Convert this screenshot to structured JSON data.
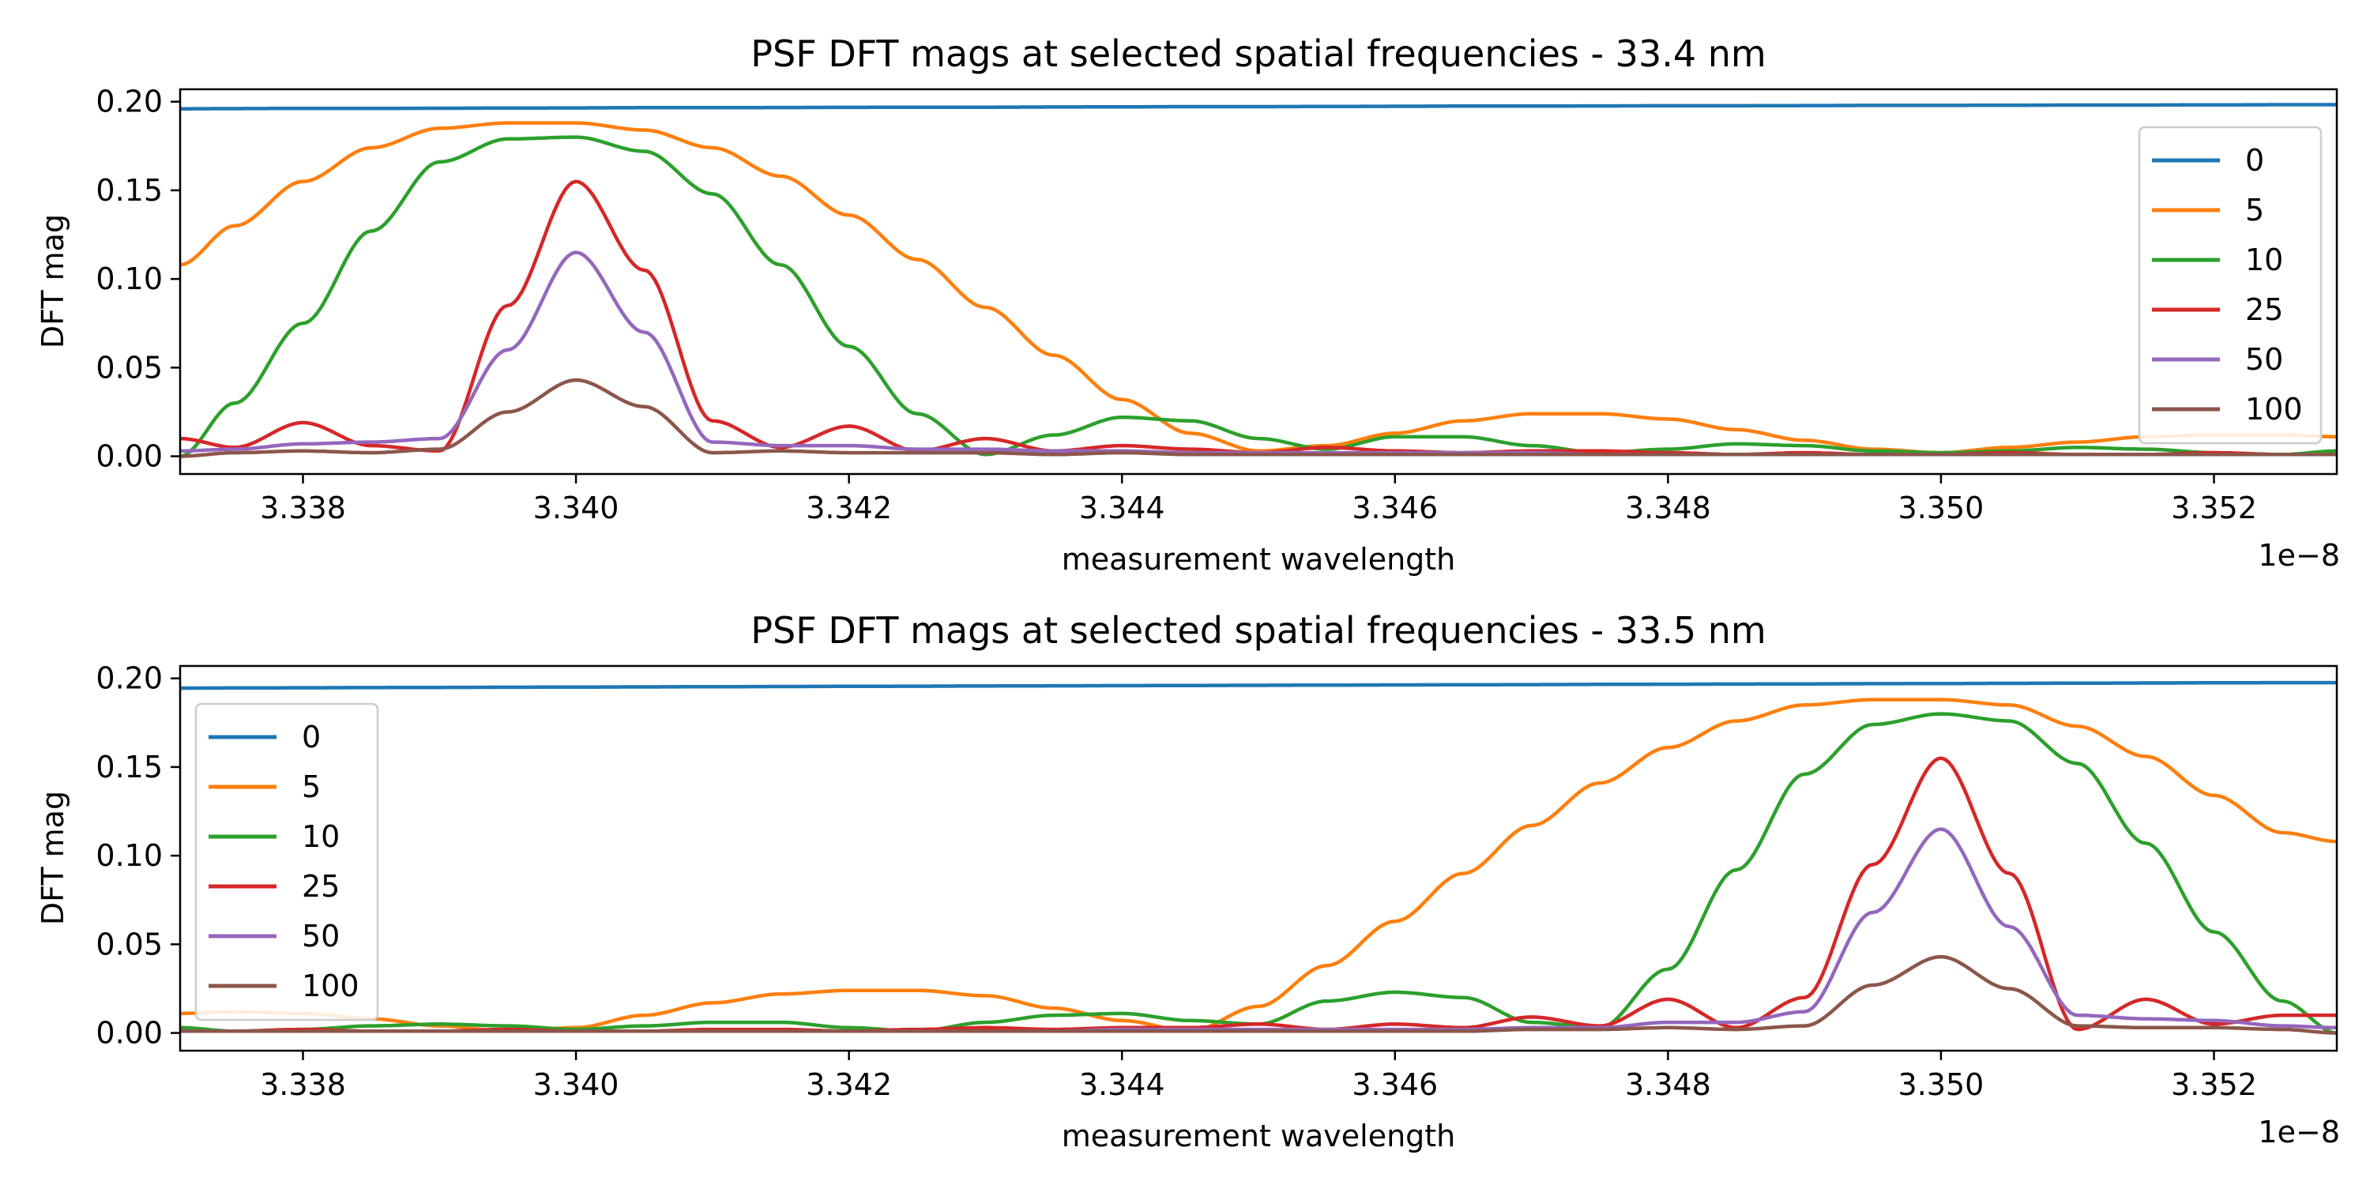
{
  "chart_data": [
    {
      "type": "line",
      "title": "PSF DFT mags at selected spatial frequencies - 33.4 nm",
      "xlabel": "measurement wavelength",
      "ylabel": "DFT mag",
      "x_offset_label": "1e−8",
      "xlim": [
        3.3371,
        3.3529
      ],
      "ylim": [
        -0.01,
        0.207
      ],
      "xticks": [
        "3.338",
        "3.340",
        "3.342",
        "3.344",
        "3.346",
        "3.348",
        "3.350",
        "3.352"
      ],
      "yticks": [
        "0.00",
        "0.05",
        "0.10",
        "0.15",
        "0.20"
      ],
      "legend_position": "upper right",
      "grid": false,
      "center": 3.34,
      "x": [
        3.3371,
        3.3375,
        3.338,
        3.3385,
        3.339,
        3.3395,
        3.34,
        3.3405,
        3.341,
        3.3415,
        3.342,
        3.3425,
        3.343,
        3.3435,
        3.344,
        3.3445,
        3.345,
        3.3455,
        3.346,
        3.3465,
        3.347,
        3.3475,
        3.348,
        3.3485,
        3.349,
        3.3495,
        3.35,
        3.3505,
        3.351,
        3.3515,
        3.352,
        3.3525,
        3.3529
      ],
      "series": [
        {
          "name": "0",
          "color": "#1f77b4",
          "values": [
            0.196,
            0.1961,
            0.1962,
            0.1962,
            0.1963,
            0.1964,
            0.1965,
            0.1966,
            0.1966,
            0.1967,
            0.1968,
            0.1969,
            0.1969,
            0.197,
            0.1971,
            0.1972,
            0.1972,
            0.1973,
            0.1974,
            0.1975,
            0.1975,
            0.1976,
            0.1977,
            0.1977,
            0.1978,
            0.1979,
            0.1979,
            0.198,
            0.1981,
            0.1981,
            0.1982,
            0.1983,
            0.1983
          ]
        },
        {
          "name": "5",
          "color": "#ff7f0e",
          "values": [
            0.108,
            0.13,
            0.155,
            0.174,
            0.185,
            0.188,
            0.188,
            0.184,
            0.174,
            0.158,
            0.136,
            0.111,
            0.084,
            0.057,
            0.032,
            0.013,
            0.003,
            0.006,
            0.013,
            0.02,
            0.024,
            0.024,
            0.021,
            0.015,
            0.009,
            0.004,
            0.002,
            0.005,
            0.008,
            0.011,
            0.012,
            0.012,
            0.011
          ]
        },
        {
          "name": "10",
          "color": "#2ca02c",
          "values": [
            0.0,
            0.03,
            0.075,
            0.127,
            0.166,
            0.179,
            0.18,
            0.172,
            0.148,
            0.108,
            0.062,
            0.024,
            0.001,
            0.012,
            0.022,
            0.02,
            0.01,
            0.004,
            0.011,
            0.011,
            0.006,
            0.002,
            0.004,
            0.007,
            0.006,
            0.003,
            0.002,
            0.003,
            0.005,
            0.004,
            0.002,
            0.001,
            0.003
          ]
        },
        {
          "name": "25",
          "color": "#d62728",
          "values": [
            0.01,
            0.005,
            0.019,
            0.006,
            0.003,
            0.085,
            0.155,
            0.105,
            0.02,
            0.005,
            0.017,
            0.003,
            0.01,
            0.003,
            0.006,
            0.004,
            0.002,
            0.005,
            0.003,
            0.002,
            0.003,
            0.003,
            0.002,
            0.001,
            0.002,
            0.001,
            0.001,
            0.002,
            0.001,
            0.001,
            0.002,
            0.001,
            0.001
          ]
        },
        {
          "name": "50",
          "color": "#9467bd",
          "values": [
            0.003,
            0.004,
            0.007,
            0.008,
            0.01,
            0.06,
            0.115,
            0.07,
            0.008,
            0.006,
            0.006,
            0.004,
            0.004,
            0.003,
            0.003,
            0.002,
            0.002,
            0.002,
            0.002,
            0.002,
            0.002,
            0.001,
            0.001,
            0.001,
            0.001,
            0.001,
            0.001,
            0.001,
            0.001,
            0.001,
            0.001,
            0.001,
            0.001
          ]
        },
        {
          "name": "100",
          "color": "#8c564b",
          "values": [
            0.0,
            0.002,
            0.003,
            0.002,
            0.004,
            0.025,
            0.043,
            0.028,
            0.002,
            0.003,
            0.002,
            0.002,
            0.002,
            0.001,
            0.002,
            0.001,
            0.001,
            0.001,
            0.001,
            0.001,
            0.001,
            0.001,
            0.001,
            0.001,
            0.001,
            0.001,
            0.001,
            0.001,
            0.001,
            0.001,
            0.001,
            0.001,
            0.001
          ]
        }
      ]
    },
    {
      "type": "line",
      "title": "PSF DFT mags at selected spatial frequencies - 33.5 nm",
      "xlabel": "measurement wavelength",
      "ylabel": "DFT mag",
      "x_offset_label": "1e−8",
      "xlim": [
        3.3371,
        3.3529
      ],
      "ylim": [
        -0.01,
        0.207
      ],
      "xticks": [
        "3.338",
        "3.340",
        "3.342",
        "3.344",
        "3.346",
        "3.348",
        "3.350",
        "3.352"
      ],
      "yticks": [
        "0.00",
        "0.05",
        "0.10",
        "0.15",
        "0.20"
      ],
      "legend_position": "upper left",
      "grid": false,
      "center": 3.35,
      "x": [
        3.3371,
        3.3375,
        3.338,
        3.3385,
        3.339,
        3.3395,
        3.34,
        3.3405,
        3.341,
        3.3415,
        3.342,
        3.3425,
        3.343,
        3.3435,
        3.344,
        3.3445,
        3.345,
        3.3455,
        3.346,
        3.3465,
        3.347,
        3.3475,
        3.348,
        3.3485,
        3.349,
        3.3495,
        3.35,
        3.3505,
        3.351,
        3.3515,
        3.352,
        3.3525,
        3.3529
      ],
      "series": [
        {
          "name": "0",
          "color": "#1f77b4",
          "values": [
            0.1945,
            0.1946,
            0.1947,
            0.1948,
            0.1949,
            0.195,
            0.1951,
            0.1952,
            0.1953,
            0.1954,
            0.1955,
            0.1956,
            0.1957,
            0.1958,
            0.1959,
            0.196,
            0.1961,
            0.1962,
            0.1963,
            0.1964,
            0.1965,
            0.1966,
            0.1967,
            0.1968,
            0.1969,
            0.197,
            0.1971,
            0.1972,
            0.1973,
            0.1974,
            0.1975,
            0.1976,
            0.1976
          ]
        },
        {
          "name": "5",
          "color": "#ff7f0e",
          "values": [
            0.011,
            0.012,
            0.011,
            0.008,
            0.004,
            0.001,
            0.003,
            0.01,
            0.017,
            0.022,
            0.024,
            0.024,
            0.021,
            0.014,
            0.007,
            0.001,
            0.015,
            0.038,
            0.063,
            0.09,
            0.117,
            0.141,
            0.161,
            0.176,
            0.185,
            0.188,
            0.188,
            0.185,
            0.173,
            0.156,
            0.134,
            0.113,
            0.108
          ]
        },
        {
          "name": "10",
          "color": "#2ca02c",
          "values": [
            0.003,
            0.001,
            0.002,
            0.004,
            0.005,
            0.004,
            0.002,
            0.004,
            0.006,
            0.006,
            0.003,
            0.001,
            0.006,
            0.01,
            0.011,
            0.007,
            0.005,
            0.018,
            0.023,
            0.02,
            0.006,
            0.003,
            0.036,
            0.092,
            0.146,
            0.174,
            0.18,
            0.176,
            0.152,
            0.107,
            0.057,
            0.018,
            0.0
          ]
        },
        {
          "name": "25",
          "color": "#d62728",
          "values": [
            0.001,
            0.001,
            0.002,
            0.001,
            0.001,
            0.002,
            0.001,
            0.001,
            0.002,
            0.002,
            0.001,
            0.002,
            0.003,
            0.002,
            0.003,
            0.003,
            0.005,
            0.002,
            0.005,
            0.003,
            0.009,
            0.004,
            0.019,
            0.003,
            0.02,
            0.095,
            0.155,
            0.09,
            0.002,
            0.019,
            0.005,
            0.01,
            0.01
          ]
        },
        {
          "name": "50",
          "color": "#9467bd",
          "values": [
            0.001,
            0.001,
            0.001,
            0.001,
            0.001,
            0.001,
            0.001,
            0.001,
            0.001,
            0.001,
            0.001,
            0.001,
            0.001,
            0.001,
            0.002,
            0.002,
            0.002,
            0.002,
            0.002,
            0.002,
            0.003,
            0.003,
            0.006,
            0.006,
            0.012,
            0.068,
            0.115,
            0.06,
            0.01,
            0.008,
            0.007,
            0.004,
            0.003
          ]
        },
        {
          "name": "100",
          "color": "#8c564b",
          "values": [
            0.001,
            0.001,
            0.001,
            0.001,
            0.001,
            0.001,
            0.001,
            0.001,
            0.001,
            0.001,
            0.001,
            0.001,
            0.001,
            0.001,
            0.001,
            0.001,
            0.001,
            0.001,
            0.001,
            0.001,
            0.002,
            0.002,
            0.003,
            0.002,
            0.004,
            0.027,
            0.043,
            0.025,
            0.004,
            0.003,
            0.003,
            0.002,
            0.0
          ]
        }
      ]
    }
  ]
}
